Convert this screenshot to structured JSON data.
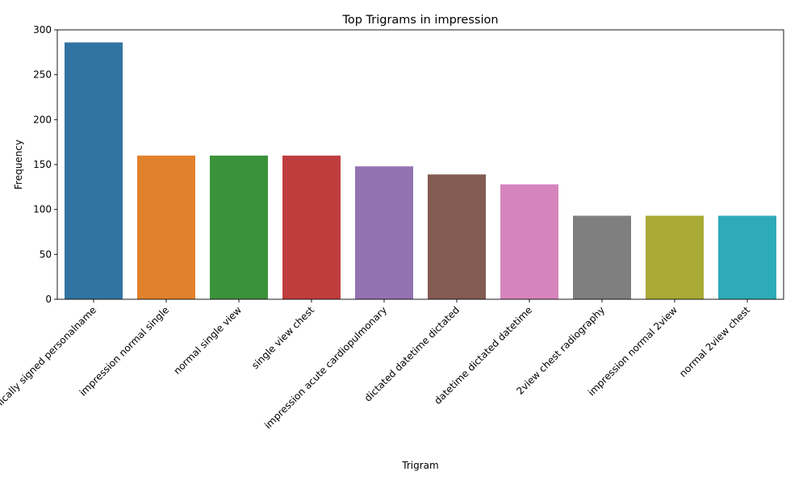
{
  "chart_data": {
    "type": "bar",
    "title": "Top Trigrams in impression",
    "xlabel": "Trigram",
    "ylabel": "Frequency",
    "categories": [
      "electronically signed personalname",
      "impression normal single",
      "normal single view",
      "single view chest",
      "impression acute cardiopulmonary",
      "dictated datetime dictated",
      "datetime dictated datetime",
      "2view chest radiography",
      "impression normal 2view",
      "normal 2view chest"
    ],
    "values": [
      286,
      160,
      160,
      160,
      148,
      139,
      128,
      93,
      93,
      93
    ],
    "colors": [
      "#3274a1",
      "#e1812c",
      "#3a923a",
      "#c03d3e",
      "#9372b2",
      "#845b53",
      "#d684bd",
      "#7f7f7f",
      "#a9aa35",
      "#2eabb8"
    ],
    "ylim": [
      0,
      300
    ],
    "yticks": [
      0,
      50,
      100,
      150,
      200,
      250,
      300
    ],
    "grid": false,
    "legend": "none"
  }
}
